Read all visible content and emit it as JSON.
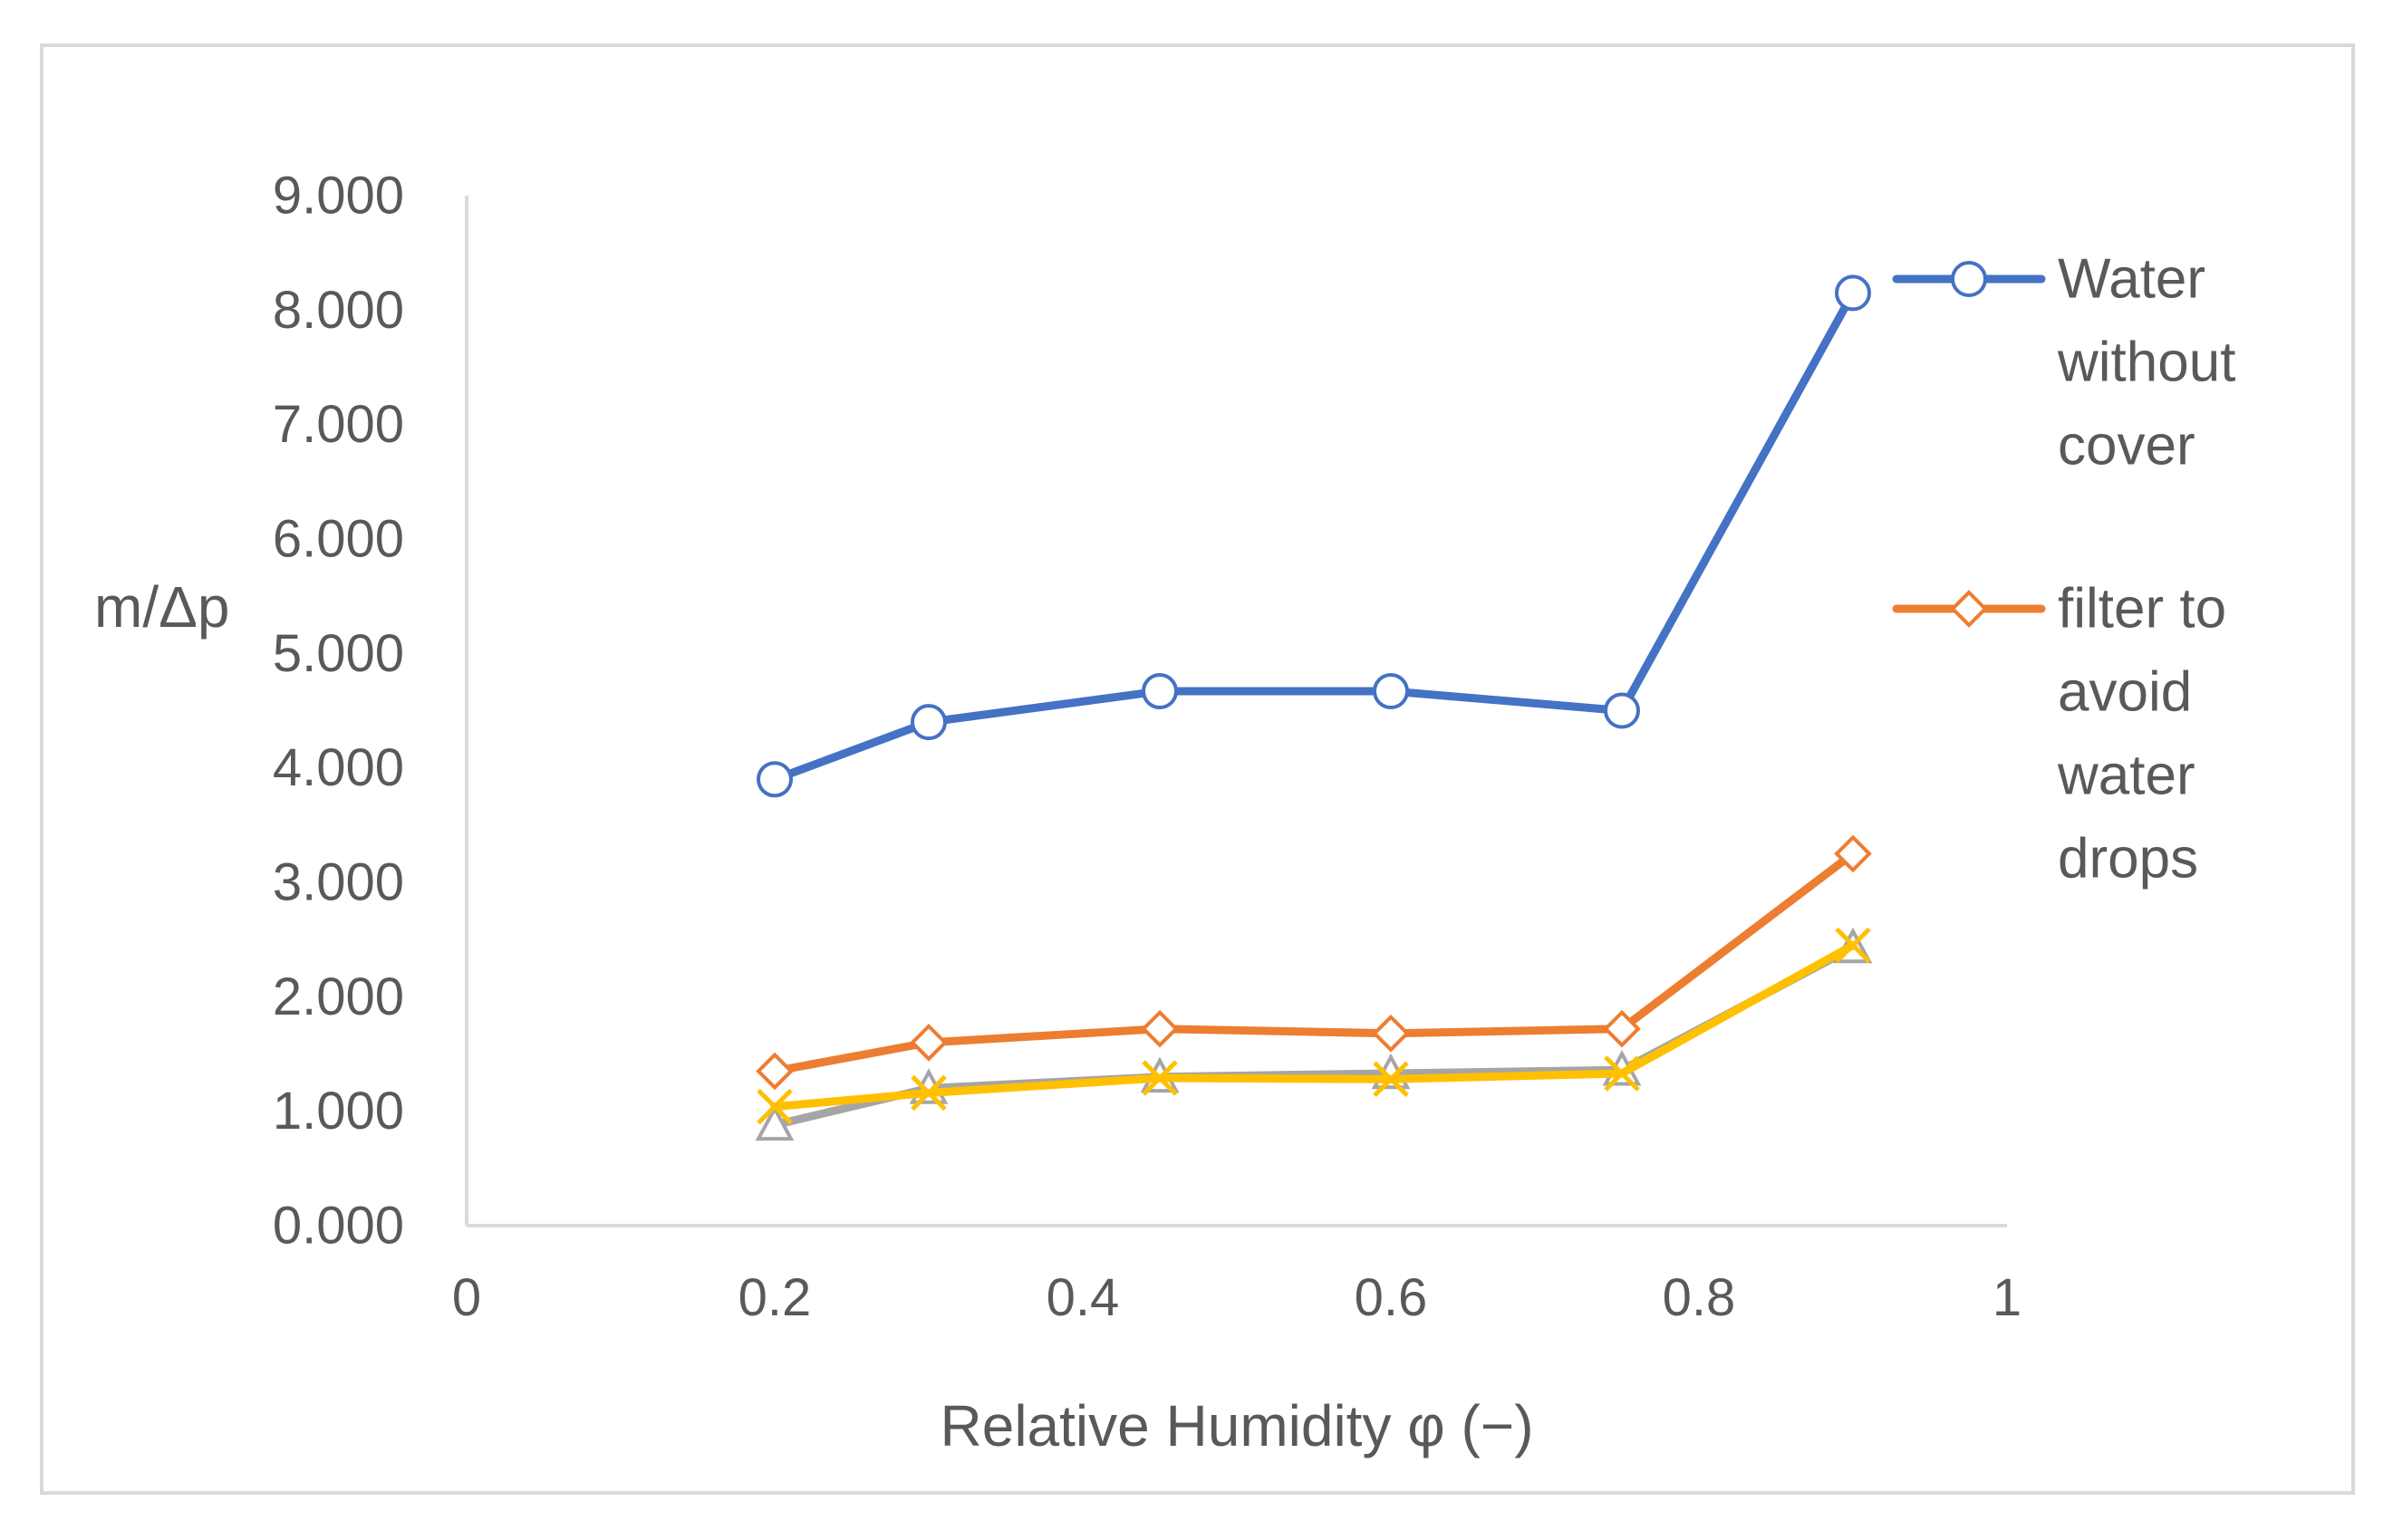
{
  "chart_data": {
    "type": "line",
    "title": "",
    "xlabel": "Relative Humidity φ (−)",
    "ylabel": "m/Δp",
    "xlim": [
      0,
      1
    ],
    "ylim": [
      0,
      9
    ],
    "x_ticks": [
      "0",
      "0.2",
      "0.4",
      "0.6",
      "0.8",
      "1"
    ],
    "y_ticks": [
      "0.000",
      "1.000",
      "2.000",
      "3.000",
      "4.000",
      "5.000",
      "6.000",
      "7.000",
      "8.000",
      "9.000"
    ],
    "grid": false,
    "legend_position": "right",
    "series": [
      {
        "name": "Water without cover",
        "legend_lines": [
          "Water",
          "without",
          "cover"
        ],
        "color": "#4472c4",
        "marker": "circle",
        "x": [
          0.2,
          0.3,
          0.45,
          0.6,
          0.75,
          0.9
        ],
        "y": [
          3.9,
          4.4,
          4.67,
          4.67,
          4.5,
          8.15
        ]
      },
      {
        "name": "filter to avoid water drops",
        "legend_lines": [
          "filter to",
          "avoid",
          "water",
          "drops"
        ],
        "color": "#ed7d31",
        "marker": "diamond",
        "x": [
          0.2,
          0.3,
          0.45,
          0.6,
          0.75,
          0.9
        ],
        "y": [
          1.35,
          1.6,
          1.72,
          1.68,
          1.72,
          3.25
        ]
      },
      {
        "name": "",
        "color": "#a5a5a5",
        "marker": "triangle",
        "x": [
          0.2,
          0.3,
          0.45,
          0.6,
          0.75,
          0.9
        ],
        "y": [
          0.88,
          1.2,
          1.3,
          1.33,
          1.36,
          2.43
        ]
      },
      {
        "name": "",
        "color": "#ffc000",
        "marker": "x",
        "x": [
          0.2,
          0.3,
          0.45,
          0.6,
          0.75,
          0.9
        ],
        "y": [
          1.04,
          1.16,
          1.29,
          1.28,
          1.33,
          2.45
        ]
      }
    ]
  }
}
